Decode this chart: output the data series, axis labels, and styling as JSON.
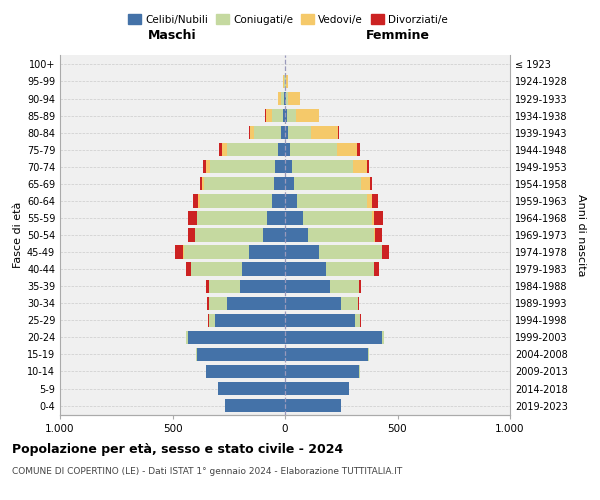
{
  "age_groups": [
    "0-4",
    "5-9",
    "10-14",
    "15-19",
    "20-24",
    "25-29",
    "30-34",
    "35-39",
    "40-44",
    "45-49",
    "50-54",
    "55-59",
    "60-64",
    "65-69",
    "70-74",
    "75-79",
    "80-84",
    "85-89",
    "90-94",
    "95-99",
    "100+"
  ],
  "birth_years": [
    "2019-2023",
    "2014-2018",
    "2009-2013",
    "2004-2008",
    "1999-2003",
    "1994-1998",
    "1989-1993",
    "1984-1988",
    "1979-1983",
    "1974-1978",
    "1969-1973",
    "1964-1968",
    "1959-1963",
    "1954-1958",
    "1949-1953",
    "1944-1948",
    "1939-1943",
    "1934-1938",
    "1929-1933",
    "1924-1928",
    "≤ 1923"
  ],
  "male": {
    "celibi": [
      265,
      300,
      350,
      390,
      430,
      310,
      260,
      200,
      190,
      160,
      100,
      80,
      60,
      50,
      45,
      30,
      20,
      10,
      5,
      2,
      0
    ],
    "coniugati": [
      0,
      0,
      2,
      5,
      10,
      30,
      80,
      140,
      230,
      290,
      300,
      310,
      320,
      310,
      290,
      230,
      120,
      50,
      15,
      3,
      0
    ],
    "vedovi": [
      0,
      0,
      0,
      0,
      2,
      0,
      0,
      0,
      0,
      2,
      2,
      3,
      5,
      10,
      18,
      20,
      15,
      25,
      10,
      2,
      0
    ],
    "divorziati": [
      0,
      0,
      0,
      0,
      0,
      3,
      5,
      10,
      20,
      35,
      30,
      40,
      25,
      8,
      10,
      15,
      5,
      3,
      0,
      0,
      0
    ]
  },
  "female": {
    "nubili": [
      250,
      285,
      330,
      370,
      430,
      310,
      250,
      200,
      180,
      150,
      100,
      80,
      55,
      42,
      30,
      22,
      15,
      10,
      5,
      2,
      0
    ],
    "coniugate": [
      0,
      0,
      2,
      5,
      10,
      25,
      75,
      130,
      215,
      280,
      295,
      305,
      310,
      295,
      270,
      210,
      100,
      40,
      10,
      3,
      0
    ],
    "vedove": [
      0,
      0,
      0,
      0,
      0,
      0,
      0,
      0,
      2,
      2,
      5,
      10,
      20,
      40,
      65,
      90,
      120,
      100,
      50,
      10,
      2
    ],
    "divorziate": [
      0,
      0,
      0,
      0,
      0,
      2,
      5,
      8,
      20,
      30,
      30,
      40,
      30,
      8,
      10,
      10,
      5,
      2,
      0,
      0,
      0
    ]
  },
  "colors": {
    "celibi": "#4472a8",
    "coniugati": "#c5d9a0",
    "vedovi": "#f5c96a",
    "divorziati": "#cc2222"
  },
  "title": "Popolazione per età, sesso e stato civile - 2024",
  "subtitle": "COMUNE DI COPERTINO (LE) - Dati ISTAT 1° gennaio 2024 - Elaborazione TUTTITALIA.IT",
  "xlabel_left": "Maschi",
  "xlabel_right": "Femmine",
  "ylabel_left": "Fasce di età",
  "ylabel_right": "Anni di nascita",
  "xlim": 1000,
  "legend_labels": [
    "Celibi/Nubili",
    "Coniugati/e",
    "Vedovi/e",
    "Divorziati/e"
  ]
}
